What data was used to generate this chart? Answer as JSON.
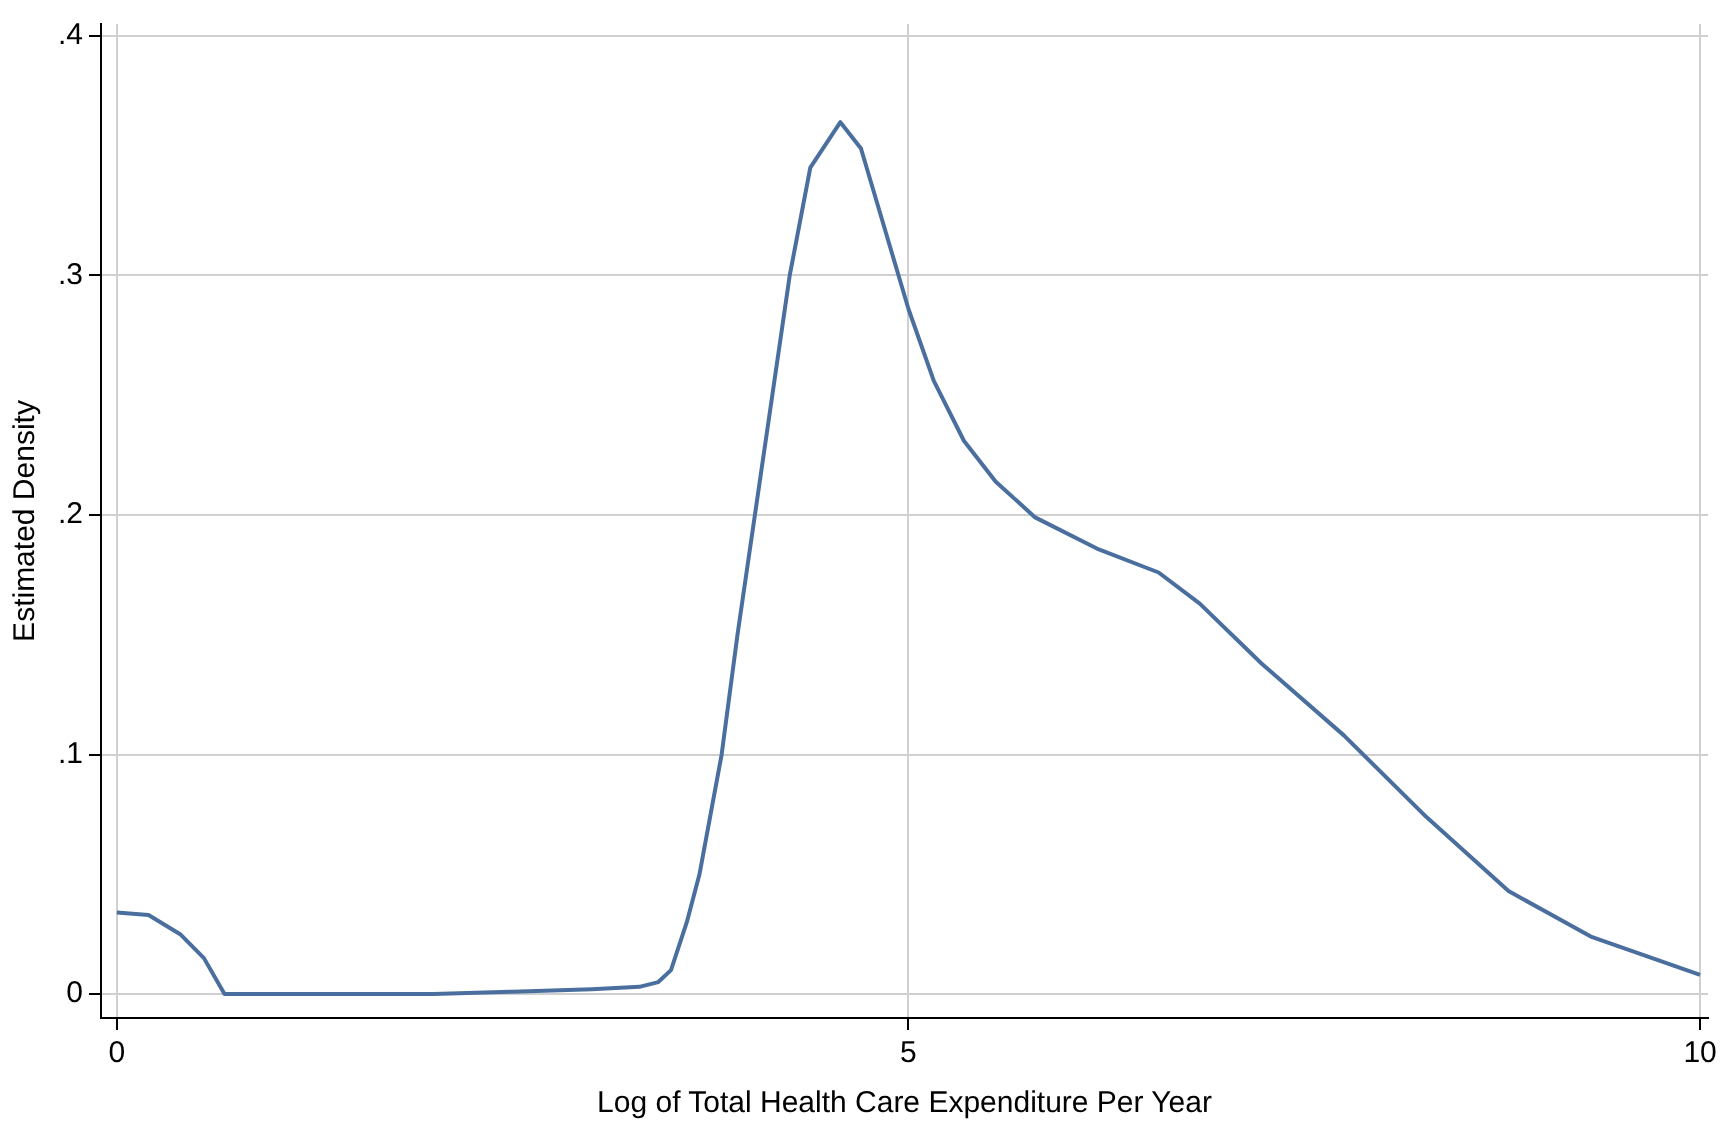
{
  "chart_data": {
    "type": "line",
    "xlabel": "Log of Total Health Care Expenditure Per Year",
    "ylabel": "Estimated Density",
    "xlim": [
      -0.1,
      10.05
    ],
    "ylim": [
      -0.01,
      0.405
    ],
    "xticks": [
      0,
      5,
      10
    ],
    "yticks": [
      {
        "value": 0,
        "label": "0"
      },
      {
        "value": 0.1,
        "label": ".1"
      },
      {
        "value": 0.2,
        "label": ".2"
      },
      {
        "value": 0.3,
        "label": ".3"
      },
      {
        "value": 0.4,
        "label": ".4"
      }
    ],
    "grid": true,
    "legend": false,
    "marker": "none",
    "line_style": "solid",
    "series": [
      {
        "color": "#4a6f9e",
        "x": [
          0,
          0.2,
          0.4,
          0.55,
          0.68,
          1,
          1.5,
          2,
          2.5,
          3,
          3.3,
          3.42,
          3.5,
          3.6,
          3.68,
          3.75,
          3.82,
          3.92,
          4.03,
          4.14,
          4.25,
          4.38,
          4.57,
          4.7,
          4.83,
          5.0,
          5.16,
          5.35,
          5.55,
          5.8,
          6.19,
          6.58,
          6.84,
          7.23,
          7.75,
          8.27,
          8.79,
          9.31,
          10
        ],
        "values": [
          0.034,
          0.033,
          0.025,
          0.015,
          0,
          0,
          0,
          0,
          0.001,
          0.002,
          0.003,
          0.005,
          0.01,
          0.03,
          0.05,
          0.075,
          0.1,
          0.15,
          0.2,
          0.25,
          0.3,
          0.345,
          0.364,
          0.353,
          0.324,
          0.286,
          0.256,
          0.231,
          0.214,
          0.199,
          0.186,
          0.176,
          0.163,
          0.138,
          0.108,
          0.074,
          0.043,
          0.024,
          0.008
        ]
      }
    ]
  }
}
